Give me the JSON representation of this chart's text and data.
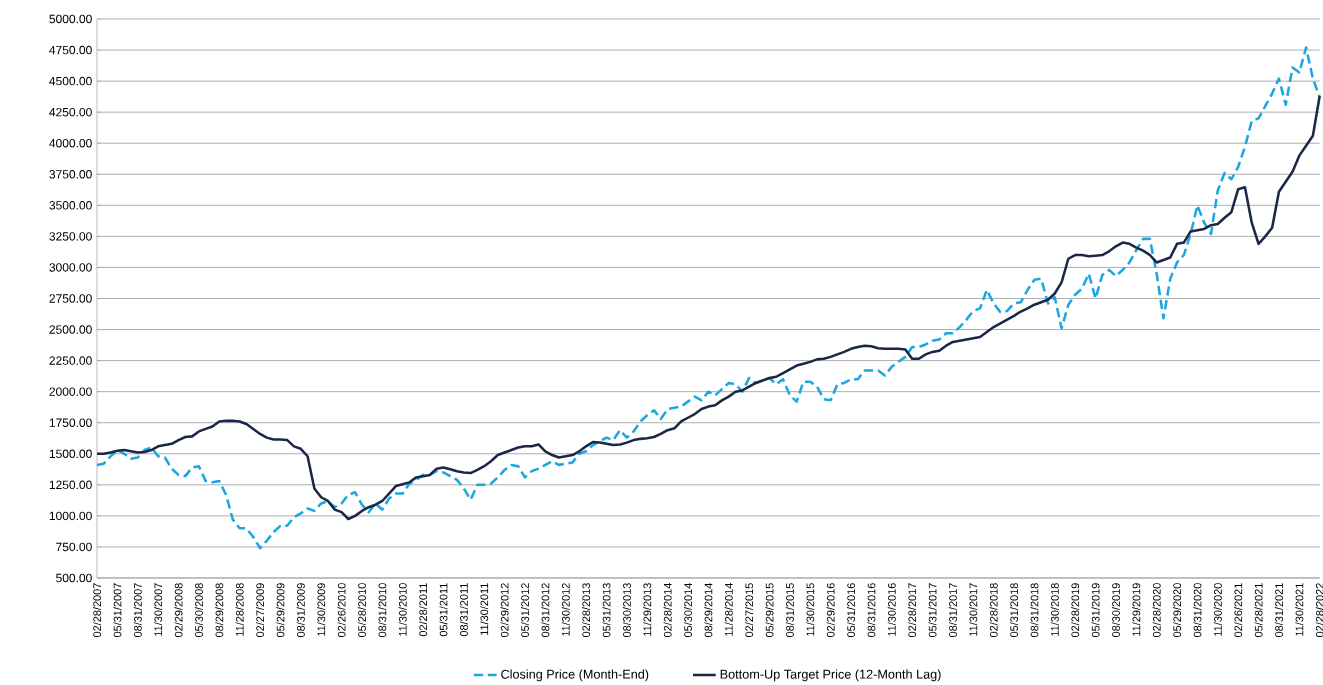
{
  "chart_data": {
    "type": "line",
    "categories": [
      "02/28/2007",
      null,
      null,
      "05/31/2007",
      null,
      null,
      "08/31/2007",
      null,
      null,
      "11/30/2007",
      null,
      null,
      "02/29/2008",
      null,
      null,
      "05/30/2008",
      null,
      null,
      "08/29/2008",
      null,
      null,
      "11/28/2008",
      null,
      null,
      "02/27/2009",
      null,
      null,
      "05/29/2009",
      null,
      null,
      "08/31/2009",
      null,
      null,
      "11/30/2009",
      null,
      null,
      "02/26/2010",
      null,
      null,
      "05/28/2010",
      null,
      null,
      "08/31/2010",
      null,
      null,
      "11/30/2010",
      null,
      null,
      "02/28/2011",
      null,
      null,
      "05/31/2011",
      null,
      null,
      "08/31/2011",
      null,
      null,
      "11/30/2011",
      null,
      null,
      "02/29/2012",
      null,
      null,
      "05/31/2012",
      null,
      null,
      "08/31/2012",
      null,
      null,
      "11/30/2012",
      null,
      null,
      "02/28/2013",
      null,
      null,
      "05/31/2013",
      null,
      null,
      "08/30/2013",
      null,
      null,
      "11/29/2013",
      null,
      null,
      "02/28/2014",
      null,
      null,
      "05/30/2014",
      null,
      null,
      "08/29/2014",
      null,
      null,
      "11/28/2014",
      null,
      null,
      "02/27/2015",
      null,
      null,
      "05/29/2015",
      null,
      null,
      "08/31/2015",
      null,
      null,
      "11/30/2015",
      null,
      null,
      "02/29/2016",
      null,
      null,
      "05/31/2016",
      null,
      null,
      "08/31/2016",
      null,
      null,
      "11/30/2016",
      null,
      null,
      "02/28/2017",
      null,
      null,
      "05/31/2017",
      null,
      null,
      "08/31/2017",
      null,
      null,
      "11/30/2017",
      null,
      null,
      "02/28/2018",
      null,
      null,
      "05/31/2018",
      null,
      null,
      "08/31/2018",
      null,
      null,
      "11/30/2018",
      null,
      null,
      "02/28/2019",
      null,
      null,
      "05/31/2019",
      null,
      null,
      "08/30/2019",
      null,
      null,
      "11/29/2019",
      null,
      null,
      "02/28/2020",
      null,
      null,
      "05/29/2020",
      null,
      null,
      "08/31/2020",
      null,
      null,
      "11/30/2020",
      null,
      null,
      "02/26/2021",
      null,
      null,
      "05/28/2021",
      null,
      null,
      "08/31/2021",
      null,
      null,
      "11/30/2021",
      null,
      null,
      "02/28/2022"
    ],
    "series": [
      {
        "name": "Closing Price (Month-End)",
        "color": "#1aa7e0",
        "line_style": "dashed",
        "values": [
          1410,
          1420,
          1480,
          1530,
          1500,
          1460,
          1470,
          1530,
          1550,
          1480,
          1470,
          1380,
          1330,
          1320,
          1390,
          1400,
          1280,
          1270,
          1280,
          1170,
          970,
          900,
          900,
          830,
          740,
          800,
          870,
          920,
          920,
          990,
          1020,
          1060,
          1040,
          1100,
          1120,
          1070,
          1100,
          1170,
          1190,
          1090,
          1030,
          1100,
          1050,
          1140,
          1180,
          1180,
          1260,
          1290,
          1330,
          1330,
          1360,
          1350,
          1320,
          1290,
          1220,
          1130,
          1250,
          1250,
          1260,
          1310,
          1370,
          1410,
          1400,
          1310,
          1360,
          1380,
          1410,
          1440,
          1410,
          1420,
          1430,
          1500,
          1520,
          1570,
          1600,
          1630,
          1610,
          1690,
          1630,
          1680,
          1760,
          1810,
          1850,
          1780,
          1860,
          1870,
          1880,
          1920,
          1960,
          1930,
          2000,
          1970,
          2020,
          2070,
          2060,
          2000,
          2110,
          2070,
          2090,
          2110,
          2060,
          2100,
          1970,
          1920,
          2080,
          2080,
          2040,
          1940,
          1930,
          2060,
          2070,
          2100,
          2100,
          2170,
          2170,
          2170,
          2130,
          2200,
          2240,
          2280,
          2360,
          2360,
          2380,
          2410,
          2420,
          2470,
          2470,
          2520,
          2580,
          2650,
          2670,
          2820,
          2710,
          2640,
          2650,
          2710,
          2720,
          2820,
          2900,
          2910,
          2710,
          2760,
          2510,
          2700,
          2780,
          2830,
          2950,
          2750,
          2940,
          2980,
          2930,
          2980,
          3040,
          3140,
          3230,
          3230,
          2950,
          2590,
          2910,
          3040,
          3100,
          3270,
          3500,
          3360,
          3270,
          3620,
          3760,
          3710,
          3810,
          3970,
          4180,
          4200,
          4300,
          4400,
          4520,
          4310,
          4610,
          4570,
          4770,
          4520,
          4370
        ]
      },
      {
        "name": "Bottom-Up Target Price (12-Month Lag)",
        "color": "#1b2747",
        "line_style": "solid",
        "values": [
          1500,
          1500,
          1510,
          1525,
          1530,
          1520,
          1510,
          1515,
          1530,
          1560,
          1570,
          1580,
          1610,
          1635,
          1640,
          1680,
          1700,
          1720,
          1760,
          1765,
          1765,
          1760,
          1740,
          1700,
          1660,
          1630,
          1615,
          1615,
          1610,
          1560,
          1540,
          1480,
          1220,
          1150,
          1120,
          1050,
          1030,
          975,
          1000,
          1040,
          1070,
          1090,
          1120,
          1180,
          1240,
          1255,
          1270,
          1310,
          1320,
          1330,
          1380,
          1390,
          1375,
          1360,
          1350,
          1345,
          1370,
          1400,
          1440,
          1490,
          1510,
          1530,
          1550,
          1560,
          1560,
          1575,
          1520,
          1490,
          1470,
          1480,
          1490,
          1520,
          1560,
          1595,
          1590,
          1580,
          1570,
          1575,
          1590,
          1610,
          1620,
          1625,
          1635,
          1660,
          1690,
          1705,
          1760,
          1790,
          1820,
          1860,
          1880,
          1890,
          1930,
          1960,
          2000,
          2010,
          2040,
          2070,
          2090,
          2110,
          2120,
          2150,
          2180,
          2210,
          2225,
          2240,
          2260,
          2265,
          2280,
          2300,
          2320,
          2345,
          2360,
          2370,
          2365,
          2350,
          2345,
          2345,
          2345,
          2340,
          2265,
          2265,
          2300,
          2320,
          2330,
          2370,
          2400,
          2410,
          2420,
          2430,
          2440,
          2480,
          2520,
          2550,
          2580,
          2610,
          2645,
          2670,
          2700,
          2720,
          2740,
          2790,
          2880,
          3070,
          3100,
          3100,
          3090,
          3095,
          3100,
          3130,
          3170,
          3200,
          3190,
          3160,
          3135,
          3100,
          3040,
          3060,
          3080,
          3190,
          3200,
          3290,
          3300,
          3310,
          3340,
          3350,
          3400,
          3445,
          3630,
          3645,
          3360,
          3190,
          3250,
          3320,
          3610,
          3690,
          3770,
          3900,
          3980,
          4060,
          4380
        ]
      }
    ],
    "ylim": [
      500,
      5000
    ],
    "yticks": [
      {
        "value": 500,
        "label": "500.00"
      },
      {
        "value": 750,
        "label": "750.00"
      },
      {
        "value": 1000,
        "label": "1000.00"
      },
      {
        "value": 1250,
        "label": "1250.00"
      },
      {
        "value": 1500,
        "label": "1500.00"
      },
      {
        "value": 1750,
        "label": "1750.00"
      },
      {
        "value": 2000,
        "label": "2000.00"
      },
      {
        "value": 2250,
        "label": "2250.00"
      },
      {
        "value": 2500,
        "label": "2500.00"
      },
      {
        "value": 2750,
        "label": "2750.00"
      },
      {
        "value": 3000,
        "label": "3000.00"
      },
      {
        "value": 3250,
        "label": "3250.00"
      },
      {
        "value": 3500,
        "label": "3500.00"
      },
      {
        "value": 3750,
        "label": "3750.00"
      },
      {
        "value": 4000,
        "label": "4000.00"
      },
      {
        "value": 4250,
        "label": "4250.00"
      },
      {
        "value": 4500,
        "label": "4500.00"
      },
      {
        "value": 4750,
        "label": "4750.00"
      },
      {
        "value": 5000,
        "label": "5000.00"
      }
    ],
    "grid": "y",
    "legend": "bottom"
  }
}
